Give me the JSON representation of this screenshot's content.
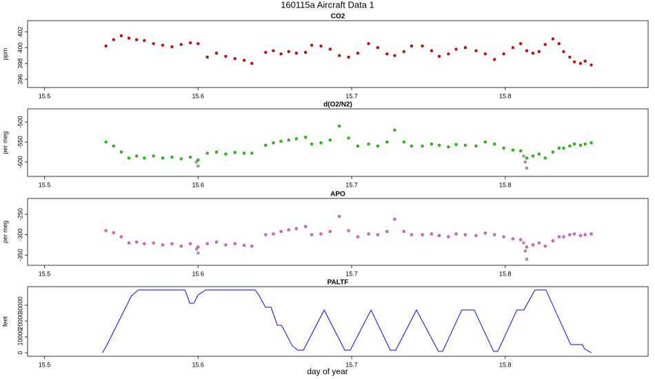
{
  "title": "160115a   Aircraft Data 1",
  "xlabel": "day of year",
  "chart_data": [
    {
      "type": "scatter",
      "title": "CO2",
      "ylabel": "ppm",
      "xlim": [
        15.489,
        15.893
      ],
      "xticks": [
        15.5,
        15.6,
        15.7,
        15.8
      ],
      "ylim": [
        394.96,
        403.4
      ],
      "yticks": [
        396,
        398,
        400,
        402
      ],
      "series": [
        {
          "color": "#e00000",
          "x": [
            15.54,
            15.545,
            15.55,
            15.555,
            15.56,
            15.565,
            15.571,
            15.577,
            15.583,
            15.589,
            15.595,
            15.6,
            15.606,
            15.612,
            15.618,
            15.624,
            15.63,
            15.635,
            15.644,
            15.649,
            15.654,
            15.659,
            15.664,
            15.67,
            15.674,
            15.68,
            15.686,
            15.692,
            15.698,
            15.704,
            15.711,
            15.717,
            15.723,
            15.728,
            15.734,
            15.739,
            15.746,
            15.752,
            15.757,
            15.763,
            15.768,
            15.774,
            15.781,
            15.787,
            15.793,
            15.799,
            15.805,
            15.81,
            15.814,
            15.818,
            15.822,
            15.826,
            15.831,
            15.835,
            15.838,
            15.842,
            15.845,
            15.849,
            15.852,
            15.856
          ],
          "values": [
            400.2,
            401.0,
            401.5,
            401.2,
            401.0,
            400.9,
            400.5,
            400.3,
            400.1,
            400.4,
            400.6,
            400.5,
            398.8,
            399.3,
            398.9,
            398.6,
            398.4,
            398.0,
            399.4,
            399.6,
            399.2,
            399.5,
            399.3,
            399.4,
            400.3,
            400.2,
            399.8,
            399.0,
            398.8,
            399.3,
            400.5,
            400.0,
            399.2,
            399.0,
            399.5,
            400.2,
            400.2,
            399.6,
            398.9,
            399.2,
            399.8,
            400.0,
            399.6,
            399.2,
            398.5,
            399.2,
            400.0,
            400.5,
            399.6,
            399.3,
            399.5,
            400.4,
            401.1,
            400.5,
            399.5,
            398.8,
            398.2,
            398.0,
            398.3,
            397.8
          ]
        }
      ]
    },
    {
      "type": "scatter",
      "title": "d(O2/N2)",
      "ylabel": "per meg",
      "xlim": [
        15.489,
        15.893
      ],
      "xticks": [
        15.5,
        15.6,
        15.7,
        15.8
      ],
      "ylim": [
        -636,
        -467
      ],
      "yticks": [
        -600,
        -550,
        -500
      ],
      "series": [
        {
          "color": "#00dd00",
          "x": [
            15.54,
            15.545,
            15.55,
            15.555,
            15.56,
            15.565,
            15.571,
            15.577,
            15.583,
            15.589,
            15.595,
            15.6,
            15.606,
            15.612,
            15.618,
            15.624,
            15.63,
            15.635,
            15.644,
            15.649,
            15.654,
            15.659,
            15.664,
            15.67,
            15.674,
            15.68,
            15.686,
            15.692,
            15.698,
            15.704,
            15.711,
            15.717,
            15.723,
            15.728,
            15.734,
            15.739,
            15.746,
            15.752,
            15.757,
            15.763,
            15.768,
            15.774,
            15.781,
            15.787,
            15.793,
            15.799,
            15.805,
            15.81,
            15.814,
            15.818,
            15.822,
            15.826,
            15.831,
            15.835,
            15.838,
            15.842,
            15.845,
            15.849,
            15.852,
            15.856
          ],
          "values": [
            -550,
            -560,
            -575,
            -590,
            -585,
            -590,
            -585,
            -590,
            -588,
            -592,
            -588,
            -595,
            -578,
            -575,
            -580,
            -576,
            -578,
            -578,
            -558,
            -552,
            -548,
            -545,
            -542,
            -538,
            -555,
            -552,
            -545,
            -510,
            -540,
            -560,
            -555,
            -560,
            -550,
            -520,
            -550,
            -560,
            -560,
            -555,
            -558,
            -562,
            -556,
            -558,
            -560,
            -550,
            -555,
            -565,
            -570,
            -572,
            -590,
            -585,
            -580,
            -590,
            -575,
            -565,
            -565,
            -560,
            -555,
            -558,
            -555,
            -552
          ]
        },
        {
          "color": "#aaaaaa",
          "x": [
            15.599,
            15.6,
            15.812,
            15.813,
            15.814
          ],
          "values": [
            -600,
            -610,
            -585,
            -600,
            -615
          ]
        }
      ]
    },
    {
      "type": "scatter",
      "title": "APO",
      "ylabel": "per meg",
      "xlim": [
        15.489,
        15.893
      ],
      "xticks": [
        15.5,
        15.6,
        15.7,
        15.8
      ],
      "ylim": [
        -375,
        -211
      ],
      "yticks": [
        -350,
        -300,
        -250
      ],
      "series": [
        {
          "color": "#e060e8",
          "x": [
            15.54,
            15.545,
            15.55,
            15.555,
            15.56,
            15.565,
            15.571,
            15.577,
            15.583,
            15.589,
            15.595,
            15.6,
            15.606,
            15.612,
            15.618,
            15.624,
            15.63,
            15.635,
            15.644,
            15.649,
            15.654,
            15.659,
            15.664,
            15.67,
            15.674,
            15.68,
            15.686,
            15.692,
            15.698,
            15.704,
            15.711,
            15.717,
            15.723,
            15.728,
            15.734,
            15.739,
            15.746,
            15.752,
            15.757,
            15.763,
            15.768,
            15.774,
            15.781,
            15.787,
            15.793,
            15.799,
            15.805,
            15.81,
            15.814,
            15.818,
            15.822,
            15.826,
            15.831,
            15.835,
            15.838,
            15.842,
            15.845,
            15.849,
            15.852,
            15.856
          ],
          "values": [
            -290,
            -295,
            -305,
            -320,
            -318,
            -322,
            -320,
            -325,
            -322,
            -328,
            -322,
            -330,
            -322,
            -318,
            -325,
            -322,
            -326,
            -328,
            -300,
            -298,
            -292,
            -288,
            -285,
            -280,
            -300,
            -298,
            -292,
            -255,
            -290,
            -305,
            -298,
            -300,
            -292,
            -262,
            -292,
            -300,
            -300,
            -298,
            -302,
            -305,
            -298,
            -300,
            -302,
            -296,
            -300,
            -305,
            -310,
            -312,
            -330,
            -325,
            -320,
            -328,
            -315,
            -305,
            -305,
            -300,
            -298,
            -302,
            -300,
            -298
          ]
        },
        {
          "color": "#aaaaaa",
          "x": [
            15.599,
            15.6,
            15.812,
            15.813,
            15.814
          ],
          "values": [
            -335,
            -345,
            -320,
            -340,
            -360
          ]
        }
      ]
    },
    {
      "type": "line",
      "title": "PALTF",
      "ylabel": "feet",
      "xlim": [
        15.489,
        15.893
      ],
      "xticks": [
        15.5,
        15.6,
        15.7,
        15.8
      ],
      "ylim": [
        -2170,
        41700
      ],
      "yticks": [
        0,
        10000,
        20000,
        30000
      ],
      "series": [
        {
          "color": "#0000ff",
          "x": [
            15.5377,
            15.5408,
            15.5565,
            15.561,
            15.5915,
            15.5946,
            15.5973,
            15.6,
            15.6049,
            15.6372,
            15.6395,
            15.6439,
            15.6475,
            15.6516,
            15.6543,
            15.6614,
            15.665,
            15.6686,
            15.6821,
            15.6955,
            15.6991,
            15.7126,
            15.7251,
            15.7287,
            15.7422,
            15.7565,
            15.7592,
            15.7717,
            15.7798,
            15.7924,
            15.7951,
            15.8076,
            15.8121,
            15.8193,
            15.8265,
            15.8426,
            15.8502,
            15.8516,
            15.8561
          ],
          "values": [
            0,
            5200,
            35700,
            39600,
            39600,
            31300,
            31300,
            36500,
            39600,
            39600,
            36500,
            28700,
            28700,
            17400,
            17400,
            4300,
            1700,
            1700,
            27000,
            1700,
            1700,
            27000,
            1700,
            1700,
            27000,
            900,
            900,
            27000,
            27000,
            900,
            900,
            27000,
            27000,
            39600,
            39600,
            5200,
            5200,
            2600,
            0
          ]
        }
      ]
    }
  ]
}
